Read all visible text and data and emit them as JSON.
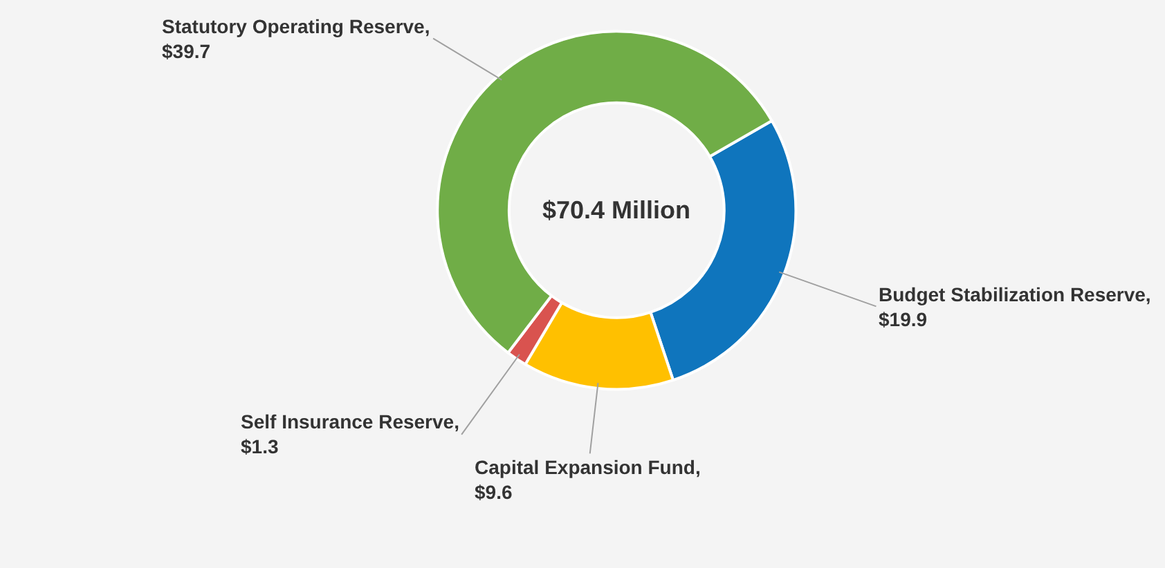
{
  "chart_data": {
    "type": "donut",
    "annotations": [
      "$70.4 Million"
    ],
    "categories": [
      "Budget Stabilization Reserve, $19.9",
      "Capital Expansion Fund, $9.6",
      "Self Insurance Reserve, $1.3",
      "Statutory Operating Reserve, $39.7"
    ],
    "values": [
      19.9,
      9.6,
      1.3,
      39.7
    ],
    "colors": [
      "#0f75bd",
      "#ffc000",
      "#d9534f",
      "#70ad47"
    ]
  }
}
